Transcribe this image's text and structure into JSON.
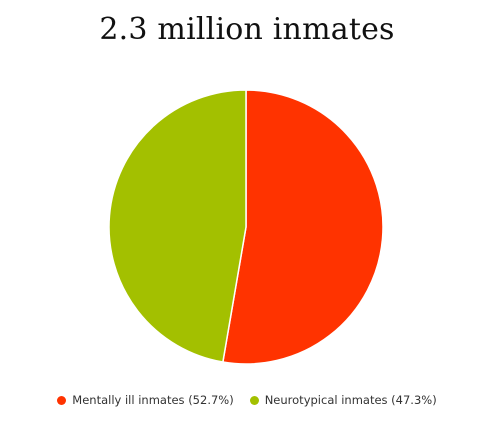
{
  "chart_data": {
    "type": "pie",
    "title": "2.3 million inmates",
    "slices": [
      {
        "label": "Mentally ill inmates (52.7%)",
        "value": 52.7,
        "color": "#ff3300"
      },
      {
        "label": "Neurotypical inmates (47.3%)",
        "value": 47.3,
        "color": "#a3c000"
      }
    ],
    "legend_position": "bottom"
  }
}
